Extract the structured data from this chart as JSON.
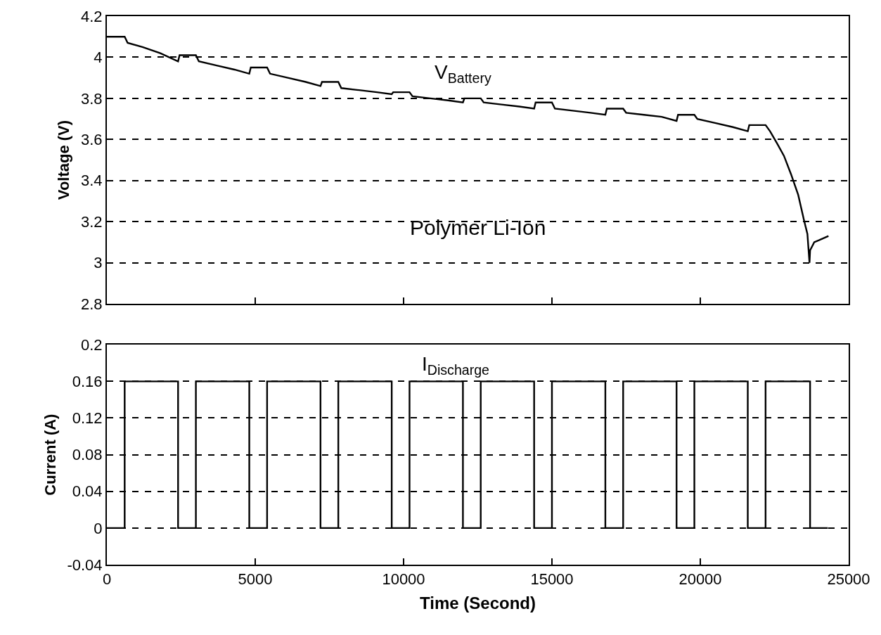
{
  "chart_data": [
    {
      "type": "line",
      "ylabel": "Voltage (V)",
      "annotations": [
        "Polymer Li-Ion"
      ],
      "xlim": [
        0,
        25000
      ],
      "xticks": [
        0,
        5000,
        10000,
        15000,
        20000,
        25000
      ],
      "ylim": [
        2.8,
        4.2
      ],
      "yticks": [
        2.8,
        3,
        3.2,
        3.4,
        3.6,
        3.8,
        4,
        4.2
      ],
      "tick_labels": "y",
      "grid": "y",
      "line_style": "solid",
      "marker": "none",
      "series": [
        {
          "name": "V$_{Battery}$",
          "color": "#000000",
          "x": [
            0,
            600,
            700,
            1200,
            1800,
            2400,
            2450,
            3000,
            3100,
            3700,
            4300,
            4800,
            4850,
            5400,
            5500,
            6100,
            6700,
            7200,
            7250,
            7800,
            7900,
            8500,
            9100,
            9600,
            9650,
            10200,
            10300,
            10900,
            11500,
            12000,
            12050,
            12600,
            12700,
            13300,
            13900,
            14400,
            14450,
            15000,
            15100,
            15700,
            16300,
            16800,
            16850,
            17400,
            17500,
            18100,
            18700,
            19200,
            19250,
            19800,
            19900,
            20500,
            21100,
            21600,
            21650,
            22200,
            22350,
            22590,
            22820,
            23060,
            23300,
            23490,
            23610,
            23680,
            23700,
            23840,
            24010,
            24320
          ],
          "values": [
            4.1,
            4.1,
            4.07,
            4.05,
            4.02,
            3.98,
            4.01,
            4.01,
            3.98,
            3.96,
            3.94,
            3.92,
            3.95,
            3.95,
            3.92,
            3.9,
            3.88,
            3.86,
            3.88,
            3.88,
            3.85,
            3.84,
            3.83,
            3.82,
            3.83,
            3.83,
            3.81,
            3.8,
            3.79,
            3.78,
            3.8,
            3.8,
            3.78,
            3.77,
            3.76,
            3.75,
            3.78,
            3.78,
            3.75,
            3.74,
            3.73,
            3.72,
            3.75,
            3.75,
            3.73,
            3.72,
            3.71,
            3.69,
            3.72,
            3.72,
            3.7,
            3.68,
            3.66,
            3.64,
            3.67,
            3.67,
            3.64,
            3.58,
            3.52,
            3.43,
            3.33,
            3.21,
            3.14,
            3.0,
            3.06,
            3.1,
            3.11,
            3.13
          ]
        }
      ]
    },
    {
      "type": "step",
      "xlabel": "Time (Second)",
      "ylabel": "Current (A)",
      "xlim": [
        0,
        25000
      ],
      "xticks": [
        0,
        5000,
        10000,
        15000,
        20000,
        25000
      ],
      "ylim": [
        -0.04,
        0.2
      ],
      "yticks": [
        -0.04,
        0,
        0.04,
        0.08,
        0.12,
        0.16,
        0.2
      ],
      "grid": "y",
      "line_style": "solid",
      "marker": "none",
      "series": [
        {
          "name": "I$_{Discharge}$",
          "color": "#000000",
          "x": [
            0,
            600,
            2400,
            3000,
            4800,
            5400,
            7200,
            7800,
            9600,
            10200,
            12000,
            12600,
            14400,
            15000,
            16800,
            17400,
            19200,
            19800,
            21600,
            22200,
            23700,
            24300
          ],
          "values": [
            0,
            0.16,
            0,
            0.16,
            0,
            0.16,
            0,
            0.16,
            0,
            0.16,
            0,
            0.16,
            0,
            0.16,
            0,
            0.16,
            0,
            0.16,
            0,
            0.16,
            0,
            0
          ]
        }
      ]
    }
  ]
}
